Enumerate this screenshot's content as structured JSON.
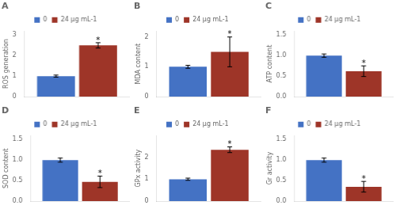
{
  "chart_data": [
    {
      "type": "bar",
      "title": "A",
      "ylabel": "ROS generation",
      "categories": [
        null
      ],
      "series": [
        {
          "name": "0",
          "color": "#4472C4",
          "values": [
            1.0
          ],
          "errors": [
            0.05
          ]
        },
        {
          "name": "24 µg mL-1",
          "color": "#9E3528",
          "values": [
            2.5
          ],
          "errors": [
            0.13
          ]
        }
      ],
      "ylim": [
        0,
        3.2
      ],
      "yticks": [
        0,
        1,
        2,
        3
      ],
      "annotations": [
        {
          "text": "*",
          "series": "24 µg mL-1"
        }
      ],
      "legend": "top",
      "grid": false,
      "tick_labels": "y"
    },
    {
      "type": "bar",
      "title": "B",
      "ylabel": "MDA content",
      "categories": [
        null
      ],
      "series": [
        {
          "name": "0",
          "color": "#4472C4",
          "values": [
            1.0
          ],
          "errors": [
            0.05
          ]
        },
        {
          "name": "24 µg mL-1",
          "color": "#9E3528",
          "values": [
            1.5
          ],
          "errors": [
            0.5
          ]
        }
      ],
      "ylim": [
        0,
        2.2
      ],
      "yticks": [
        0,
        1,
        2
      ],
      "annotations": [
        {
          "text": "*",
          "series": "24 µg mL-1"
        }
      ],
      "legend": "top",
      "grid": false,
      "tick_labels": "y"
    },
    {
      "type": "bar",
      "title": "C",
      "ylabel": "ATP content",
      "categories": [
        null
      ],
      "series": [
        {
          "name": "0",
          "color": "#4472C4",
          "values": [
            1.0
          ],
          "errors": [
            0.04
          ]
        },
        {
          "name": "24 µg mL-1",
          "color": "#9E3528",
          "values": [
            0.62
          ],
          "errors": [
            0.13
          ]
        }
      ],
      "ylim": [
        0,
        1.6
      ],
      "yticks": [
        {
          "value": 0,
          "label": "0.0"
        },
        {
          "value": 0.5,
          "label": "0.5"
        },
        {
          "value": 1.0,
          "label": "1.0"
        },
        {
          "value": 1.5,
          "label": "1.5"
        }
      ],
      "annotations": [
        {
          "text": "*",
          "series": "24 µg mL-1"
        }
      ],
      "legend": "top",
      "grid": false,
      "tick_labels": "y"
    },
    {
      "type": "bar",
      "title": "D",
      "ylabel": "SOD content",
      "categories": [
        null
      ],
      "series": [
        {
          "name": "0",
          "color": "#4472C4",
          "values": [
            1.0
          ],
          "errors": [
            0.05
          ]
        },
        {
          "name": "24 µg mL-1",
          "color": "#9E3528",
          "values": [
            0.47
          ],
          "errors": [
            0.14
          ]
        }
      ],
      "ylim": [
        0,
        1.6
      ],
      "yticks": [
        {
          "value": 0,
          "label": "0.0"
        },
        {
          "value": 0.5,
          "label": "0.5"
        },
        {
          "value": 1.0,
          "label": "1.0"
        },
        {
          "value": 1.5,
          "label": "1.5"
        }
      ],
      "annotations": [
        {
          "text": "*",
          "series": "24 µg mL-1"
        }
      ],
      "legend": "top",
      "grid": false,
      "tick_labels": "y"
    },
    {
      "type": "bar",
      "title": "E",
      "ylabel": "GPx activity",
      "categories": [
        null
      ],
      "series": [
        {
          "name": "0",
          "color": "#4472C4",
          "values": [
            1.0
          ],
          "errors": [
            0.05
          ]
        },
        {
          "name": "24 µg mL-1",
          "color": "#9E3528",
          "values": [
            2.35
          ],
          "errors": [
            0.13
          ]
        }
      ],
      "ylim": [
        0,
        3.0
      ],
      "yticks": [
        0,
        1,
        2
      ],
      "annotations": [
        {
          "text": "*",
          "series": "24 µg mL-1"
        }
      ],
      "legend": "top",
      "grid": false,
      "tick_labels": "y"
    },
    {
      "type": "bar",
      "title": "F",
      "ylabel": "Gr activity",
      "categories": [
        null
      ],
      "series": [
        {
          "name": "0",
          "color": "#4472C4",
          "values": [
            1.0
          ],
          "errors": [
            0.05
          ]
        },
        {
          "name": "24 µg mL-1",
          "color": "#9E3528",
          "values": [
            0.35
          ],
          "errors": [
            0.13
          ]
        }
      ],
      "ylim": [
        0,
        1.6
      ],
      "yticks": [
        {
          "value": 0,
          "label": "0.0"
        },
        {
          "value": 0.5,
          "label": "0.5"
        },
        {
          "value": 1.0,
          "label": "1.0"
        },
        {
          "value": 1.5,
          "label": "1.5"
        }
      ],
      "annotations": [
        {
          "text": "*",
          "series": "24 µg mL-1"
        }
      ],
      "legend": "top",
      "grid": false,
      "tick_labels": "y"
    }
  ]
}
